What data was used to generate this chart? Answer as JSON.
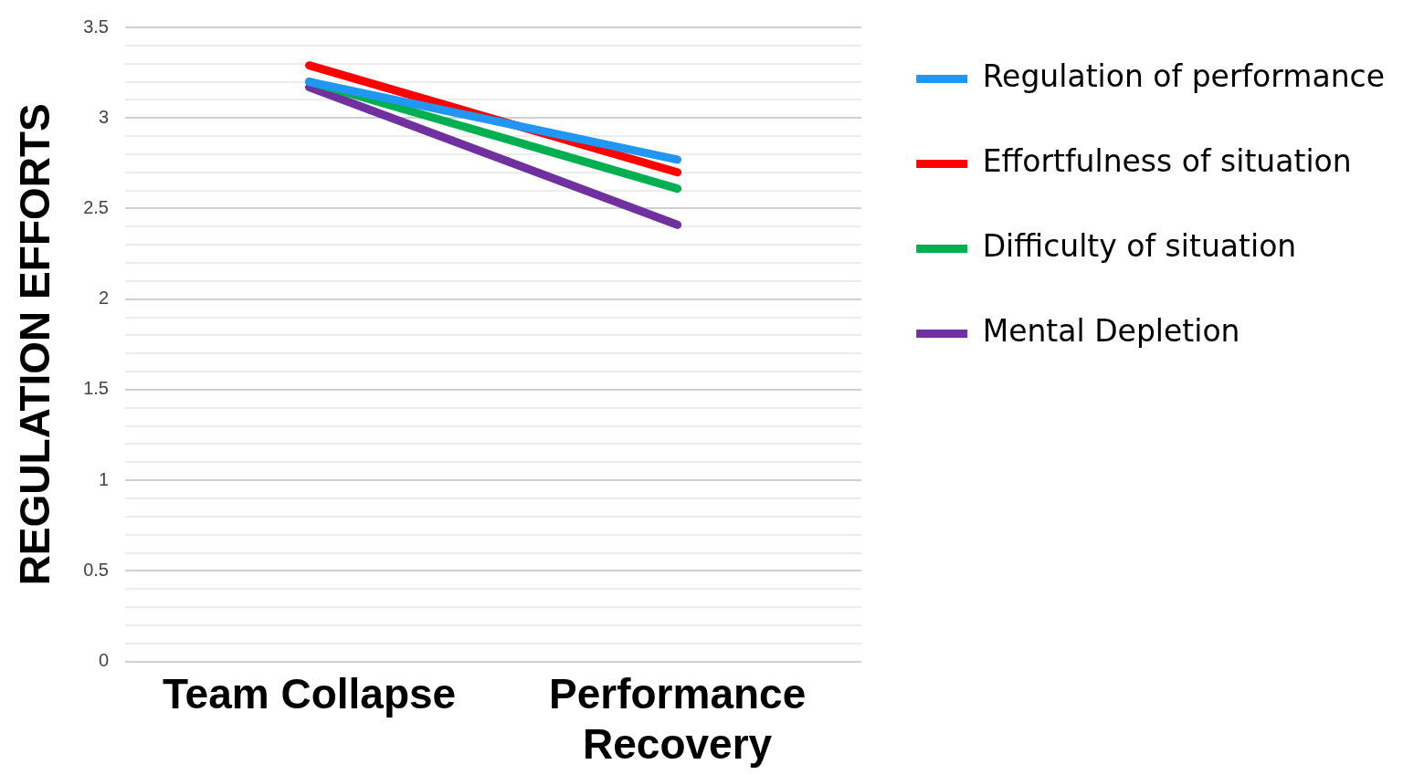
{
  "chart_data": {
    "type": "line",
    "ylabel": "REGULATION EFFORTS",
    "categories": [
      "Team Collapse",
      "Performance Recovery"
    ],
    "series": [
      {
        "name": "Regulation of performance",
        "color": "#2196f3",
        "values": [
          3.2,
          2.77
        ]
      },
      {
        "name": "Effortfulness of situation",
        "color": "#ff0000",
        "values": [
          3.29,
          2.7
        ]
      },
      {
        "name": "Difficulty of situation",
        "color": "#00b050",
        "values": [
          3.2,
          2.61
        ]
      },
      {
        "name": "Mental Depletion",
        "color": "#7030a0",
        "values": [
          3.17,
          2.41
        ]
      }
    ],
    "ylim": [
      0,
      3.5
    ],
    "yticks": [
      0,
      {
        "value": 0.1,
        "label": null
      },
      {
        "value": 0.2,
        "label": null
      },
      {
        "value": 0.3,
        "label": null
      },
      {
        "value": 0.4,
        "label": null
      },
      0.5,
      {
        "value": 0.6,
        "label": null
      },
      {
        "value": 0.7,
        "label": null
      },
      {
        "value": 0.8,
        "label": null
      },
      {
        "value": 0.9,
        "label": null
      },
      1,
      {
        "value": 1.1,
        "label": null
      },
      {
        "value": 1.2,
        "label": null
      },
      {
        "value": 1.3,
        "label": null
      },
      {
        "value": 1.4,
        "label": null
      },
      1.5,
      {
        "value": 1.6,
        "label": null
      },
      {
        "value": 1.7,
        "label": null
      },
      {
        "value": 1.8,
        "label": null
      },
      {
        "value": 1.9,
        "label": null
      },
      2,
      {
        "value": 2.1,
        "label": null
      },
      {
        "value": 2.2,
        "label": null
      },
      {
        "value": 2.3,
        "label": null
      },
      {
        "value": 2.4,
        "label": null
      },
      2.5,
      {
        "value": 2.6,
        "label": null
      },
      {
        "value": 2.7,
        "label": null
      },
      {
        "value": 2.8,
        "label": null
      },
      {
        "value": 2.9,
        "label": null
      },
      3,
      {
        "value": 3.1,
        "label": null
      },
      {
        "value": 3.2,
        "label": null
      },
      {
        "value": 3.3,
        "label": null
      },
      {
        "value": 3.4,
        "label": null
      },
      3.5
    ],
    "grid": "y",
    "legend": "right",
    "marker": "none",
    "line_style": "solid"
  }
}
